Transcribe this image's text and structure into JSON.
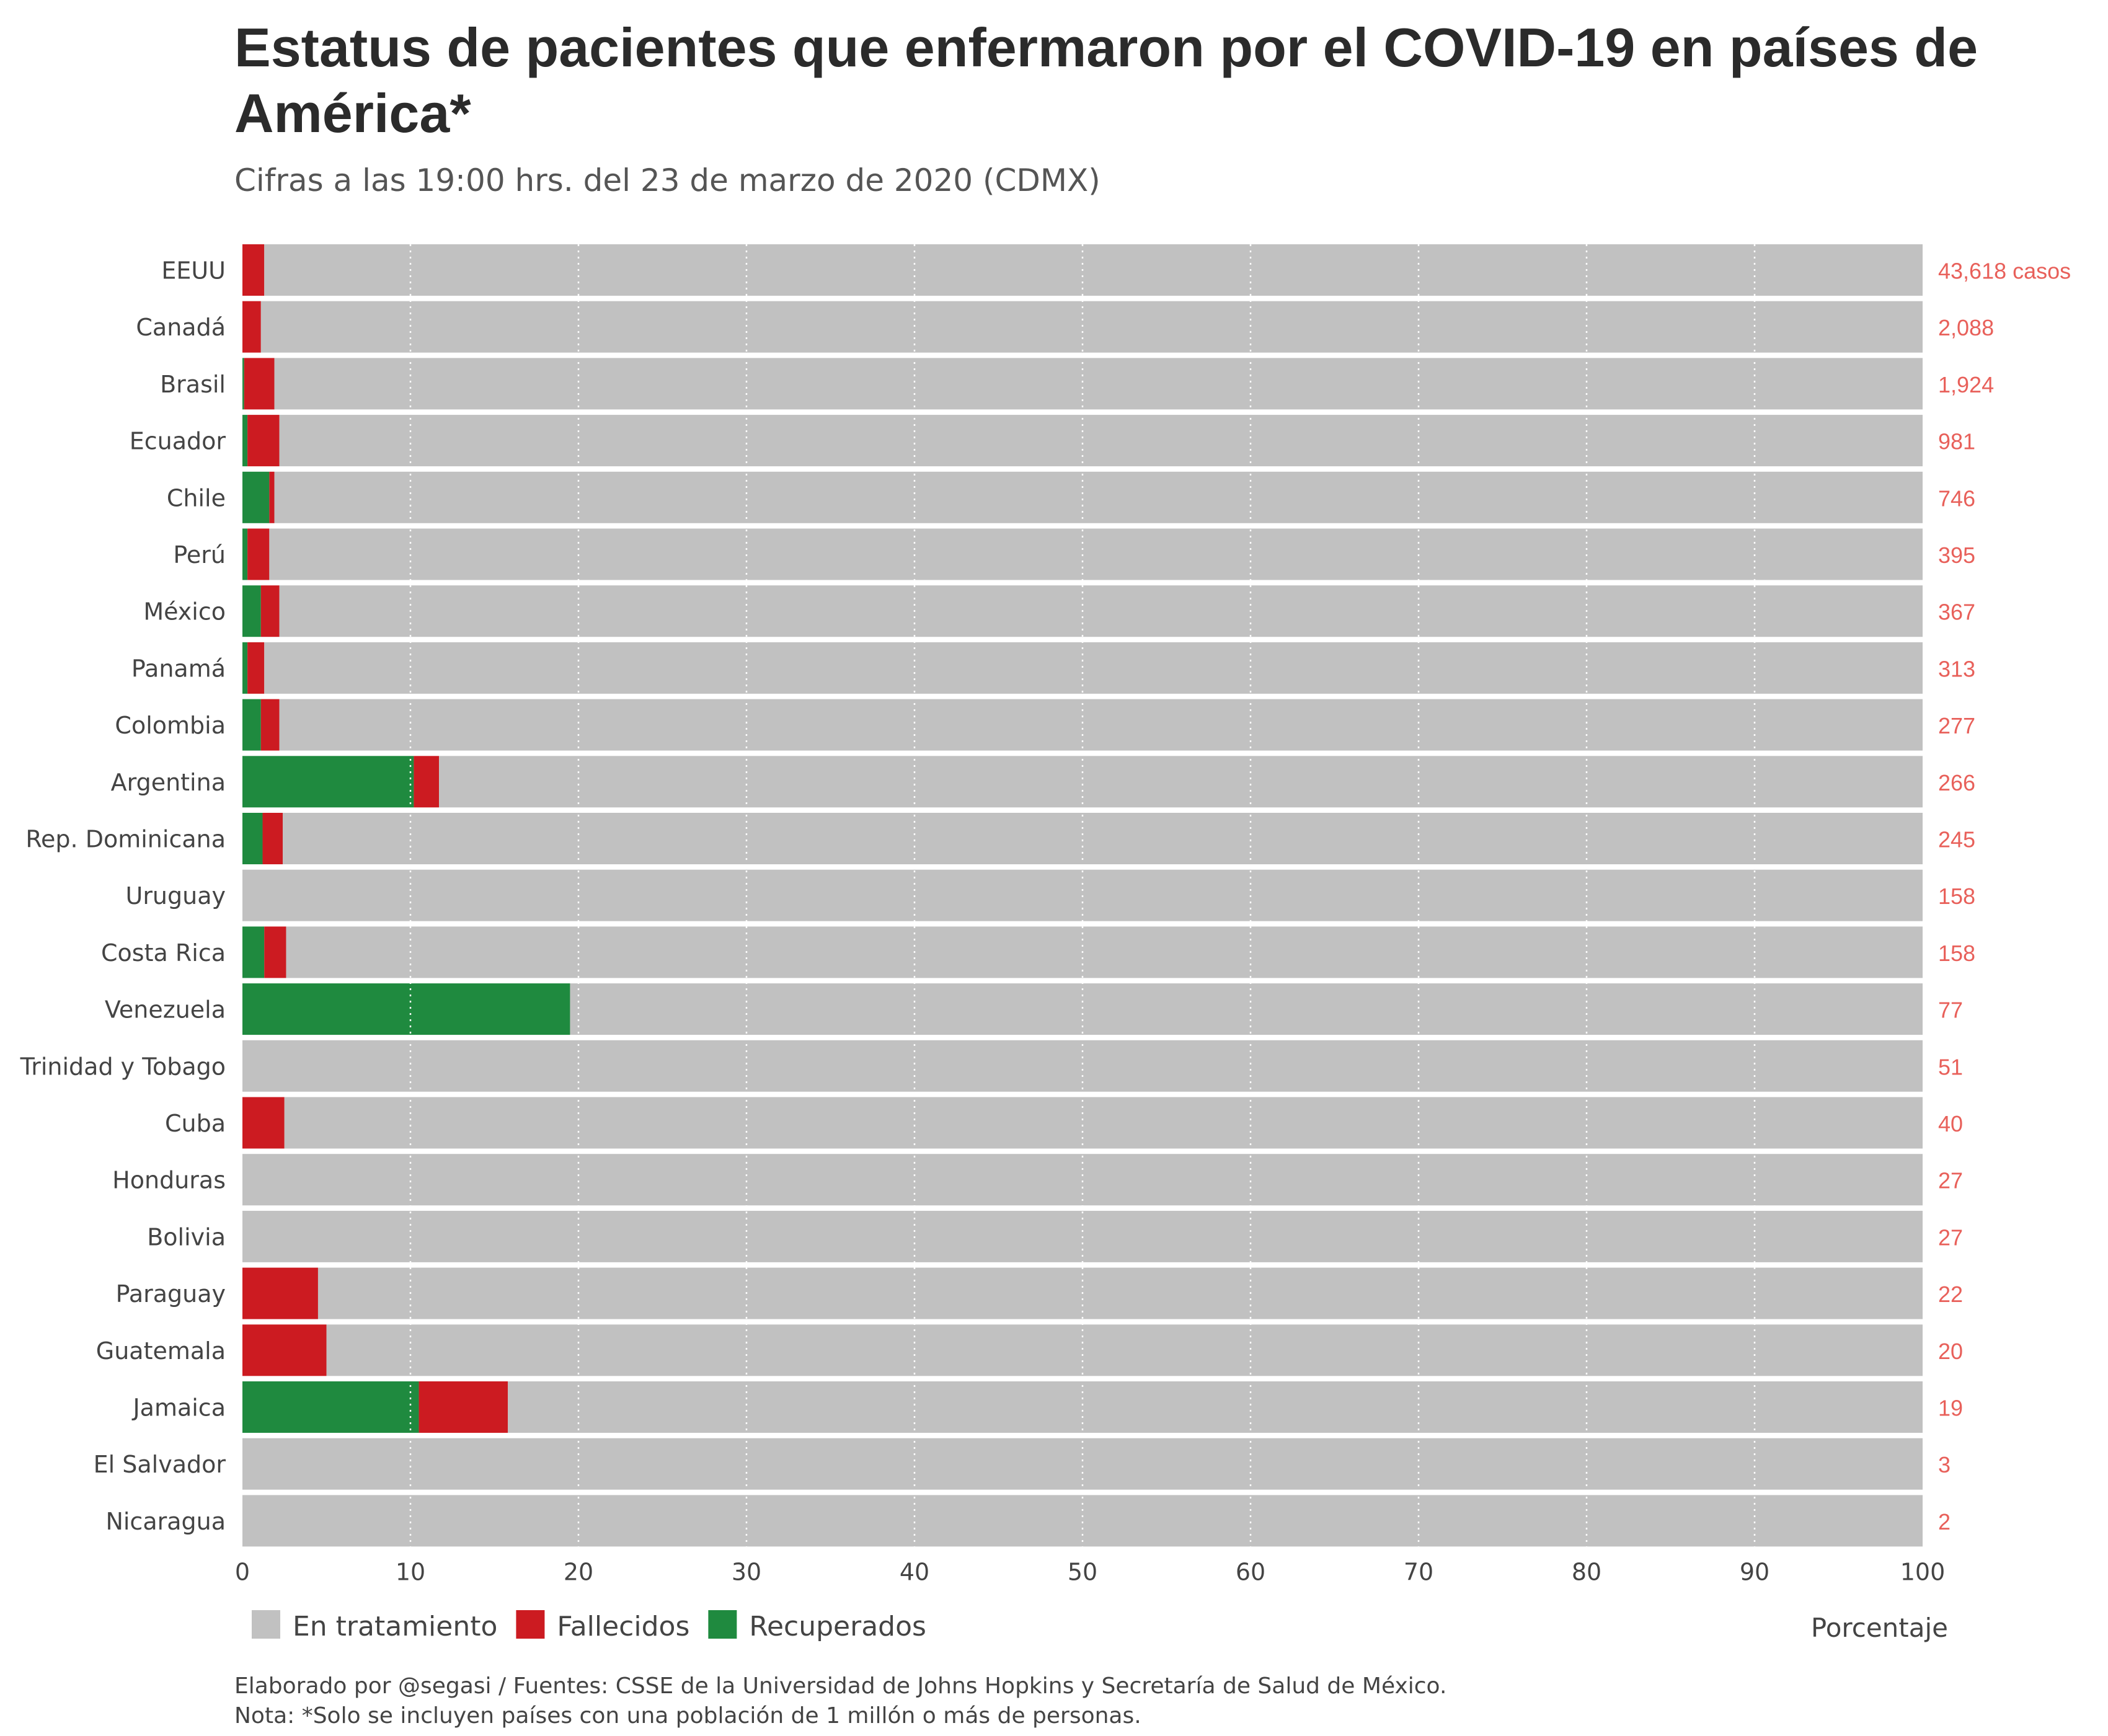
{
  "title": "Estatus de pacientes que enfermaron por el COVID-19 en países de América*",
  "subtitle": "Cifras a las 19:00 hrs. del 23 de marzo de 2020 (CDMX)",
  "footer": {
    "source": "Elaborado por @segasi / Fuentes: CSSE de la Universidad de Johns Hopkins y Secretaría de Salud de México.",
    "note": "Nota: *Solo se incluyen países con una población de 1 millón o más de personas."
  },
  "colors": {
    "tratamiento": "#c1c1c1",
    "fallecidos": "#cc1b21",
    "recuperados": "#1f8a3f",
    "cases_label": "#e8605a",
    "text": "#444444"
  },
  "chart_data": {
    "type": "bar",
    "orientation": "horizontal",
    "stacked": true,
    "xlabel": "Porcentaje",
    "xlim": [
      0,
      100
    ],
    "x_ticks": [
      0,
      10,
      20,
      30,
      40,
      50,
      60,
      70,
      80,
      90,
      100
    ],
    "grid": "vertical dotted",
    "legend_position": "bottom-left",
    "categories": [
      "EEUU",
      "Canadá",
      "Brasil",
      "Ecuador",
      "Chile",
      "Perú",
      "México",
      "Panamá",
      "Colombia",
      "Argentina",
      "Rep. Dominicana",
      "Uruguay",
      "Costa Rica",
      "Venezuela",
      "Trinidad y Tobago",
      "Cuba",
      "Honduras",
      "Bolivia",
      "Paraguay",
      "Guatemala",
      "Jamaica",
      "El Salvador",
      "Nicaragua"
    ],
    "series": [
      {
        "name": "Recuperados",
        "color": "#1f8a3f",
        "values": [
          0,
          0,
          0.1,
          0.3,
          1.6,
          0.3,
          1.1,
          0.3,
          1.1,
          10.2,
          1.2,
          0,
          1.3,
          19.5,
          0,
          0,
          0,
          0,
          0,
          0,
          10.5,
          0,
          0
        ]
      },
      {
        "name": "Fallecidos",
        "color": "#cc1b21",
        "values": [
          1.3,
          1.1,
          1.8,
          1.9,
          0.3,
          1.3,
          1.1,
          1.0,
          1.1,
          1.5,
          1.2,
          0,
          1.3,
          0,
          0,
          2.5,
          0,
          0,
          4.5,
          5.0,
          5.3,
          0,
          0
        ]
      },
      {
        "name": "En tratamiento",
        "color": "#c1c1c1",
        "values": [
          98.7,
          98.9,
          98.1,
          97.8,
          98.1,
          98.4,
          97.8,
          98.7,
          97.8,
          88.3,
          97.6,
          100,
          97.4,
          80.5,
          100,
          97.5,
          100,
          100,
          95.5,
          95.0,
          84.2,
          100,
          100
        ]
      }
    ],
    "legend_order": [
      "En tratamiento",
      "Fallecidos",
      "Recuperados"
    ],
    "case_labels": [
      "43,618 casos",
      "2,088",
      "1,924",
      "981",
      "746",
      "395",
      "367",
      "313",
      "277",
      "266",
      "245",
      "158",
      "158",
      "77",
      "51",
      "40",
      "27",
      "27",
      "22",
      "20",
      "19",
      "3",
      "2"
    ]
  }
}
